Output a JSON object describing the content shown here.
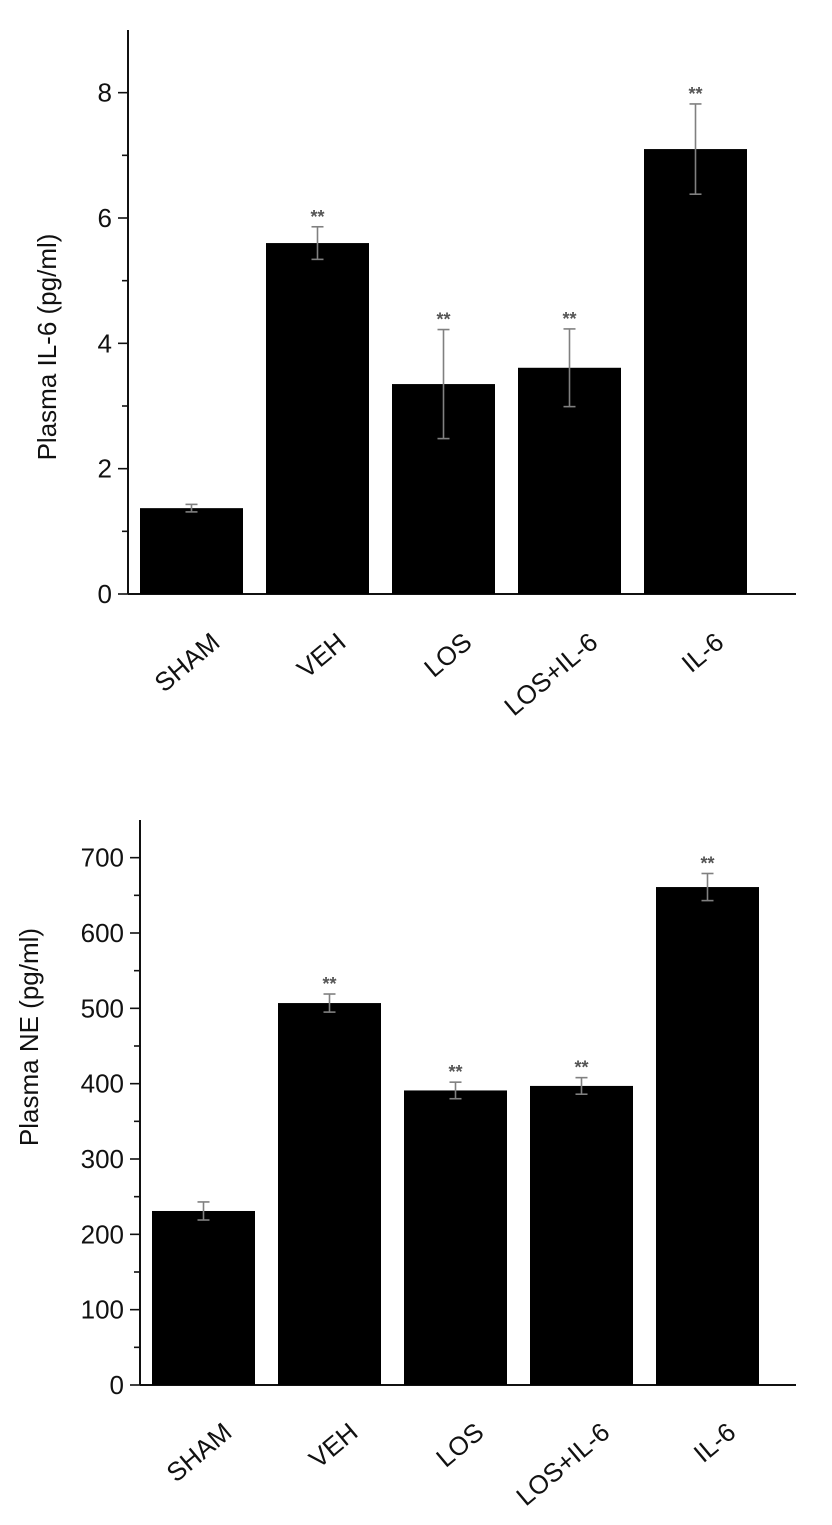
{
  "chart_data": [
    {
      "type": "bar",
      "ylabel": "Plasma IL-6 (pg/ml)",
      "categories": [
        "SHAM",
        "VEH",
        "LOS",
        "LOS+IL-6",
        "IL-6"
      ],
      "values": [
        1.37,
        5.6,
        3.35,
        3.61,
        7.1
      ],
      "errors": [
        0.06,
        0.26,
        0.87,
        0.62,
        0.72
      ],
      "significance": [
        "",
        "**",
        "**",
        "**",
        "**"
      ],
      "ylim": [
        0,
        9
      ],
      "yticks": [
        0,
        2,
        4,
        6,
        8
      ],
      "grid": false,
      "bar_color": "#000000",
      "error_color": "#808080"
    },
    {
      "type": "bar",
      "ylabel": "Plasma NE (pg/ml)",
      "categories": [
        "SHAM",
        "VEH",
        "LOS",
        "LOS+IL-6",
        "IL-6"
      ],
      "values": [
        231,
        507,
        391,
        397,
        661
      ],
      "errors": [
        12,
        12,
        11,
        11,
        18
      ],
      "significance": [
        "",
        "**",
        "**",
        "**",
        "**"
      ],
      "ylim": [
        0,
        750
      ],
      "yticks": [
        0,
        100,
        200,
        300,
        400,
        500,
        600,
        700
      ],
      "grid": false,
      "bar_color": "#000000",
      "error_color": "#808080"
    }
  ]
}
